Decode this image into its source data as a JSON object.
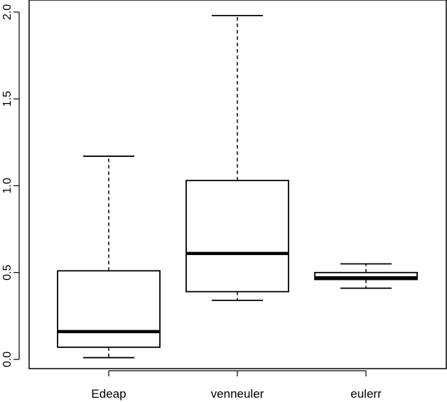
{
  "chart_data": {
    "type": "boxplot",
    "categories": [
      "Edeap",
      "venneuler",
      "eulerr"
    ],
    "boxes": [
      {
        "name": "Edeap",
        "whisker_low": 0.01,
        "q1": 0.07,
        "median": 0.16,
        "q3": 0.51,
        "whisker_high": 1.17
      },
      {
        "name": "venneuler",
        "whisker_low": 0.34,
        "q1": 0.39,
        "median": 0.61,
        "q3": 1.03,
        "whisker_high": 1.98
      },
      {
        "name": "eulerr",
        "whisker_low": 0.41,
        "q1": 0.46,
        "median": 0.47,
        "q3": 0.5,
        "whisker_high": 0.55
      }
    ],
    "y_ticks": [
      0.0,
      0.5,
      1.0,
      1.5,
      2.0
    ],
    "y_tick_labels": [
      "0.0",
      "0.5",
      "1.0",
      "1.5",
      "2.0"
    ],
    "ylim": [
      0,
      2.0
    ],
    "title": "",
    "xlabel": "",
    "ylabel": "",
    "grid": false
  }
}
